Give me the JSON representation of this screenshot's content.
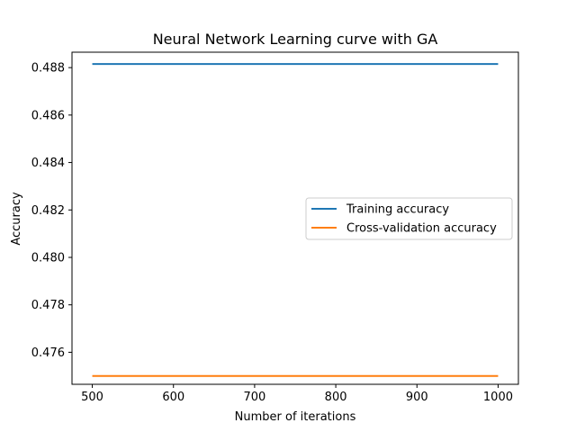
{
  "chart_data": {
    "type": "line",
    "title": "Neural Network Learning curve with GA",
    "xlabel": "Number of iterations",
    "ylabel": "Accuracy",
    "x": [
      500,
      1000
    ],
    "xlim": [
      475,
      1025
    ],
    "ylim": [
      0.47465,
      0.48865
    ],
    "xticks": [
      500,
      600,
      700,
      800,
      900,
      1000
    ],
    "xtick_labels": [
      "500",
      "600",
      "700",
      "800",
      "900",
      "1000"
    ],
    "yticks": [
      0.476,
      0.478,
      0.48,
      0.482,
      0.484,
      0.486,
      0.488
    ],
    "ytick_labels": [
      "0.476",
      "0.478",
      "0.480",
      "0.482",
      "0.484",
      "0.486",
      "0.488"
    ],
    "grid": false,
    "legend_position": "center-right",
    "series": [
      {
        "name": "Training accuracy",
        "values": [
          0.48815,
          0.48815
        ],
        "color": "#1f77b4"
      },
      {
        "name": "Cross-validation accuracy",
        "values": [
          0.475,
          0.475
        ],
        "color": "#ff7f0e"
      }
    ]
  }
}
